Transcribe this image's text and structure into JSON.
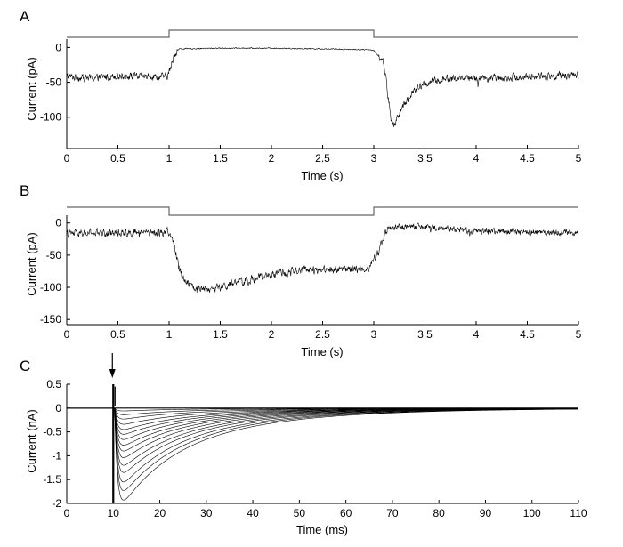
{
  "chart_data": [
    {
      "panel_label": "A",
      "type": "line",
      "xlabel": "Time (s)",
      "ylabel": "Current (pA)",
      "xlim": [
        0,
        5
      ],
      "ylim": [
        -145,
        12
      ],
      "xticks": [
        0,
        0.5,
        1,
        1.5,
        2,
        2.5,
        3,
        3.5,
        4,
        4.5,
        5
      ],
      "xtick_labels": [
        "0",
        "0.5",
        "1",
        "1.5",
        "2",
        "2.5",
        "3",
        "3.5",
        "4",
        "4.5",
        "5"
      ],
      "yticks": [
        0,
        -50,
        -100
      ],
      "ytick_labels": [
        "0",
        "-50",
        "-100"
      ],
      "grid": false,
      "stimulus": {
        "baseline_level": "low",
        "step_on": 1,
        "step_off": 3,
        "direction": "up"
      },
      "series": [
        {
          "x": [
            0,
            0.25,
            0.5,
            0.75,
            0.98,
            1.02,
            1.05,
            1.1,
            1.5,
            2.0,
            2.5,
            2.9,
            3.0,
            3.1,
            3.14,
            3.17,
            3.2,
            3.25,
            3.3,
            3.4,
            3.5,
            3.7,
            4.0,
            4.5,
            5.0
          ],
          "y": [
            -42,
            -44,
            -40,
            -42,
            -42,
            -28,
            -10,
            -2,
            -1,
            -1,
            -2,
            -3,
            -4,
            -22,
            -70,
            -105,
            -112,
            -95,
            -80,
            -62,
            -52,
            -45,
            -44,
            -42,
            -40
          ],
          "noise": 8,
          "note_shape": "noisy recorded trace"
        }
      ]
    },
    {
      "panel_label": "B",
      "type": "line",
      "xlabel": "Time (s)",
      "ylabel": "Current (pA)",
      "xlim": [
        0,
        5
      ],
      "ylim": [
        -158,
        12
      ],
      "xticks": [
        0,
        0.5,
        1,
        1.5,
        2,
        2.5,
        3,
        3.5,
        4,
        4.5,
        5
      ],
      "xtick_labels": [
        "0",
        "0.5",
        "1",
        "1.5",
        "2",
        "2.5",
        "3",
        "3.5",
        "4",
        "4.5",
        "5"
      ],
      "yticks": [
        0,
        -50,
        -100,
        -150
      ],
      "ytick_labels": [
        "0",
        "-50",
        "-100",
        "-150"
      ],
      "grid": false,
      "stimulus": {
        "baseline_level": "high",
        "step_on": 1,
        "step_off": 3,
        "direction": "down"
      },
      "series": [
        {
          "x": [
            0,
            0.25,
            0.5,
            0.75,
            1.0,
            1.05,
            1.1,
            1.15,
            1.25,
            1.4,
            1.6,
            1.8,
            2.0,
            2.2,
            2.4,
            2.6,
            2.8,
            2.95,
            3.05,
            3.1,
            3.15,
            3.3,
            3.6,
            4.0,
            4.5,
            5.0
          ],
          "y": [
            -17,
            -16,
            -15,
            -14,
            -14,
            -35,
            -70,
            -88,
            -100,
            -103,
            -96,
            -88,
            -80,
            -75,
            -73,
            -72,
            -72,
            -70,
            -45,
            -18,
            -8,
            -5,
            -8,
            -12,
            -14,
            -15
          ],
          "noise": 9,
          "note_shape": "noisy recorded trace"
        }
      ]
    },
    {
      "panel_label": "C",
      "type": "line",
      "xlabel": "Time (ms)",
      "ylabel": "Current (nA)",
      "xlim": [
        0,
        110
      ],
      "ylim": [
        -2,
        0.5
      ],
      "xticks": [
        0,
        10,
        20,
        30,
        40,
        50,
        60,
        70,
        80,
        90,
        100,
        110
      ],
      "xtick_labels": [
        "0",
        "10",
        "20",
        "30",
        "40",
        "50",
        "60",
        "70",
        "80",
        "90",
        "100",
        "110"
      ],
      "yticks": [
        0.5,
        0,
        -0.5,
        -1,
        -1.5,
        -2
      ],
      "ytick_labels": [
        "0.5",
        "0",
        "-0.5",
        "-1",
        "-1.5",
        "-2"
      ],
      "grid": false,
      "stimulus_arrow_x": 10,
      "artifact": {
        "x": 10,
        "top": 0.5,
        "bottom": -2
      },
      "onset_ms": 10.3,
      "family_peaks": [
        -1.93,
        -1.73,
        -1.55,
        -1.35,
        -1.2,
        -1.04,
        -0.9,
        -0.78,
        -0.66,
        -0.55,
        -0.45,
        -0.34,
        -0.23,
        -0.14,
        -0.06
      ],
      "rise_ms": 0.6,
      "decay_ms": [
        9,
        16,
        30
      ],
      "decay_weights": [
        0.35,
        0.4,
        0.25
      ]
    }
  ]
}
